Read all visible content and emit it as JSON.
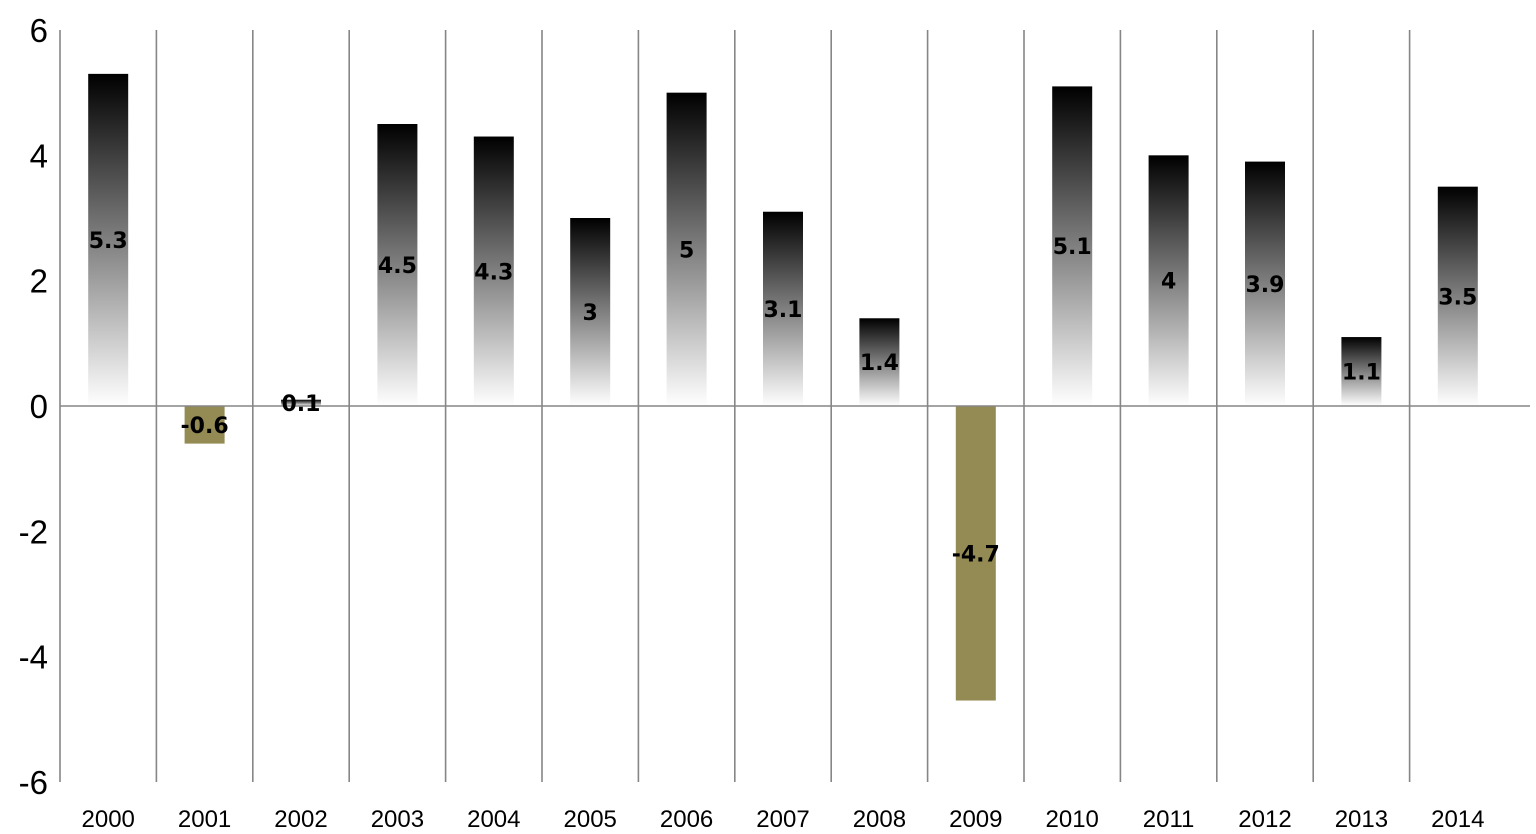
{
  "chart_data": {
    "type": "bar",
    "title": "",
    "xlabel": "",
    "ylabel": "",
    "ylim": [
      -6,
      6
    ],
    "yticks": [
      "6",
      "4",
      "2",
      "0",
      "-2",
      "-4",
      "-6"
    ],
    "categories": [
      "2000",
      "2001",
      "2002",
      "2003",
      "2004",
      "2005",
      "2006",
      "2007",
      "2008",
      "2009",
      "2010",
      "2011",
      "2012",
      "2013",
      "2014"
    ],
    "values": [
      5.3,
      -0.6,
      0.1,
      4.5,
      4.3,
      3,
      5,
      3.1,
      1.4,
      -4.7,
      5.1,
      4,
      3.9,
      1.1,
      3.5
    ],
    "data_labels": [
      "5.3",
      "-0.6",
      "0.1",
      "4.5",
      "4.3",
      "3",
      "5",
      "3.1",
      "1.4",
      "-4.7",
      "5.1",
      "4",
      "3.9",
      "1.1",
      "3.5"
    ],
    "grid": "vertical",
    "legend": "none",
    "colors": {
      "positive_top": "#000000",
      "positive_bottom": "#ffffff",
      "negative": "#948A54",
      "axis": "#868686",
      "grid": "#868686"
    }
  }
}
